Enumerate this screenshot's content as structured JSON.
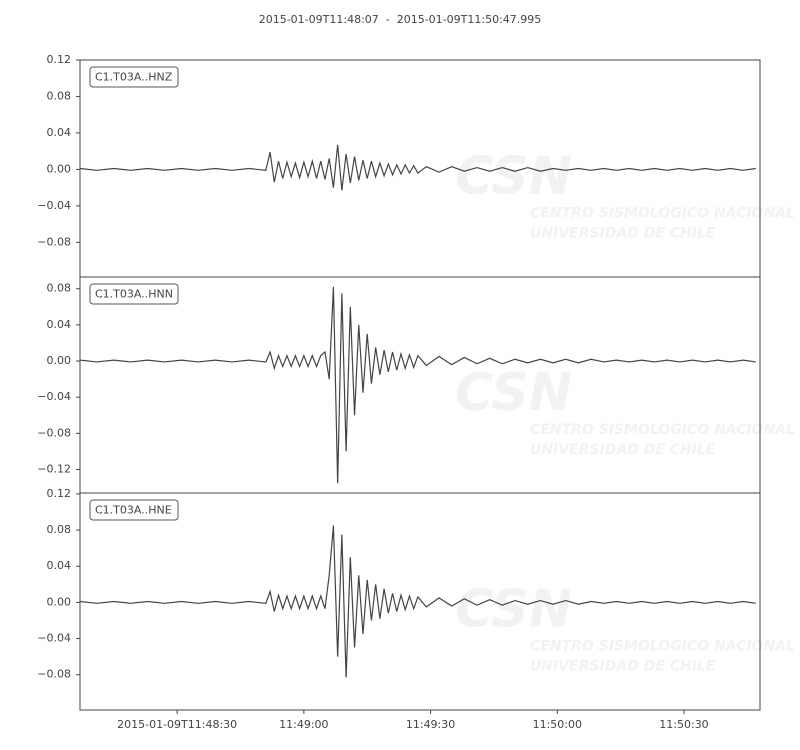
{
  "chart_data": [
    {
      "type": "line",
      "title": "2015-01-09T11:48:07  -  2015-01-09T11:50:47.995",
      "x": [
        0,
        4,
        8,
        12,
        16,
        20,
        24,
        28,
        32,
        36,
        40,
        44,
        45,
        46,
        47,
        48,
        49,
        50,
        51,
        52,
        53,
        54,
        55,
        56,
        57,
        58,
        59,
        60,
        61,
        62,
        63,
        64,
        65,
        66,
        67,
        68,
        69,
        70,
        71,
        72,
        73,
        74,
        75,
        76,
        77,
        78,
        79,
        80,
        82,
        85,
        88,
        91,
        94,
        97,
        100,
        103,
        106,
        109,
        112,
        115,
        118,
        121,
        124,
        127,
        130,
        133,
        136,
        139,
        142,
        145,
        148,
        151,
        154,
        157,
        160
      ],
      "series": [
        {
          "name": "C1.T03A..HNZ",
          "color": "#444444",
          "values": [
            0.001,
            -0.001,
            0.001,
            -0.001,
            0.001,
            -0.001,
            0.001,
            -0.001,
            0.001,
            -0.001,
            0.001,
            -0.001,
            0.019,
            -0.014,
            0.009,
            -0.01,
            0.008,
            -0.008,
            0.007,
            -0.009,
            0.008,
            -0.008,
            0.009,
            -0.01,
            0.009,
            -0.011,
            0.012,
            -0.02,
            0.027,
            -0.023,
            0.017,
            -0.015,
            0.014,
            -0.012,
            0.01,
            -0.01,
            0.009,
            -0.008,
            0.007,
            -0.007,
            0.006,
            -0.006,
            0.005,
            -0.005,
            0.005,
            -0.004,
            0.004,
            -0.004,
            0.003,
            -0.003,
            0.003,
            -0.002,
            0.002,
            -0.002,
            0.002,
            -0.002,
            0.002,
            -0.002,
            0.001,
            -0.001,
            0.001,
            -0.001,
            0.001,
            -0.001,
            0.001,
            -0.001,
            0.001,
            -0.001,
            0.001,
            -0.001,
            0.001,
            -0.001,
            0.001,
            -0.001,
            0.001
          ]
        }
      ],
      "xlim": [
        0,
        160.995
      ],
      "ylim": [
        -0.118,
        0.12
      ],
      "yticks": [
        0.12,
        0.08,
        0.04,
        {
          "value": 0,
          "label": "0.00"
        },
        {
          "value": -0.04,
          "label": "−0.04"
        },
        {
          "value": -0.08,
          "label": "−0.08"
        }
      ]
    },
    {
      "type": "line",
      "x": [
        0,
        4,
        8,
        12,
        16,
        20,
        24,
        28,
        32,
        36,
        40,
        44,
        45,
        46,
        47,
        48,
        49,
        50,
        51,
        52,
        53,
        54,
        55,
        56,
        57,
        58,
        59,
        60,
        61,
        62,
        63,
        64,
        65,
        66,
        67,
        68,
        69,
        70,
        71,
        72,
        73,
        74,
        75,
        76,
        77,
        78,
        79,
        80,
        82,
        85,
        88,
        91,
        94,
        97,
        100,
        103,
        106,
        109,
        112,
        115,
        118,
        121,
        124,
        127,
        130,
        133,
        136,
        139,
        142,
        145,
        148,
        151,
        154,
        157,
        160
      ],
      "series": [
        {
          "name": "C1.T03A..HNN",
          "color": "#444444",
          "values": [
            0.001,
            -0.001,
            0.001,
            -0.001,
            0.001,
            -0.001,
            0.001,
            -0.001,
            0.001,
            -0.001,
            0.001,
            -0.001,
            0.01,
            -0.008,
            0.006,
            -0.006,
            0.006,
            -0.006,
            0.006,
            -0.006,
            0.006,
            -0.006,
            0.006,
            -0.006,
            0.006,
            0.01,
            -0.02,
            0.082,
            -0.135,
            0.075,
            -0.1,
            0.06,
            -0.06,
            0.04,
            -0.035,
            0.03,
            -0.025,
            0.015,
            -0.015,
            0.012,
            -0.012,
            0.01,
            -0.01,
            0.008,
            -0.008,
            0.007,
            -0.007,
            0.006,
            -0.005,
            0.005,
            -0.004,
            0.004,
            -0.003,
            0.003,
            -0.003,
            0.002,
            -0.002,
            0.002,
            -0.002,
            0.002,
            -0.002,
            0.002,
            -0.001,
            0.001,
            -0.001,
            0.001,
            -0.001,
            0.001,
            -0.001,
            0.001,
            -0.001,
            0.001,
            -0.001,
            0.001,
            -0.001
          ]
        }
      ],
      "xlim": [
        0,
        160.995
      ],
      "ylim": [
        -0.146,
        0.093
      ],
      "yticks": [
        0.08,
        0.04,
        {
          "value": 0,
          "label": "0.00"
        },
        {
          "value": -0.04,
          "label": "−0.04"
        },
        {
          "value": -0.08,
          "label": "−0.08"
        },
        {
          "value": -0.12,
          "label": "−0.12"
        }
      ]
    },
    {
      "type": "line",
      "x": [
        0,
        4,
        8,
        12,
        16,
        20,
        24,
        28,
        32,
        36,
        40,
        44,
        45,
        46,
        47,
        48,
        49,
        50,
        51,
        52,
        53,
        54,
        55,
        56,
        57,
        58,
        59,
        60,
        61,
        62,
        63,
        64,
        65,
        66,
        67,
        68,
        69,
        70,
        71,
        72,
        73,
        74,
        75,
        76,
        77,
        78,
        79,
        80,
        82,
        85,
        88,
        91,
        94,
        97,
        100,
        103,
        106,
        109,
        112,
        115,
        118,
        121,
        124,
        127,
        130,
        133,
        136,
        139,
        142,
        145,
        148,
        151,
        154,
        157,
        160
      ],
      "series": [
        {
          "name": "C1.T03A..HNE",
          "color": "#444444",
          "values": [
            0.001,
            -0.001,
            0.001,
            -0.001,
            0.001,
            -0.001,
            0.001,
            -0.001,
            0.001,
            -0.001,
            0.001,
            -0.001,
            0.012,
            -0.01,
            0.008,
            -0.007,
            0.007,
            -0.007,
            0.007,
            -0.007,
            0.007,
            -0.007,
            0.007,
            -0.007,
            0.007,
            -0.007,
            0.03,
            0.085,
            -0.06,
            0.075,
            -0.083,
            0.05,
            -0.05,
            0.03,
            -0.035,
            0.025,
            -0.02,
            0.02,
            -0.018,
            0.015,
            -0.012,
            0.01,
            -0.01,
            0.008,
            -0.008,
            0.007,
            -0.007,
            0.006,
            -0.005,
            0.005,
            -0.004,
            0.004,
            -0.003,
            0.003,
            -0.003,
            0.002,
            -0.002,
            0.002,
            -0.002,
            0.002,
            -0.002,
            0.001,
            -0.001,
            0.001,
            -0.001,
            0.001,
            -0.001,
            0.001,
            -0.001,
            0.001,
            -0.001,
            0.001,
            -0.001,
            0.001,
            -0.001
          ]
        }
      ],
      "xlim": [
        0,
        160.995
      ],
      "ylim": [
        -0.119,
        0.121
      ],
      "yticks": [
        {
          "value": 0.12,
          "label": "0.12"
        },
        0.08,
        0.04,
        {
          "value": 0,
          "label": "0.00"
        },
        {
          "value": -0.04,
          "label": "−0.04"
        },
        {
          "value": -0.08,
          "label": "−0.08"
        }
      ],
      "xticks": [
        {
          "value": 23,
          "label": "2015-01-09T11:48:30"
        },
        {
          "value": 53,
          "label": "11:49:00"
        },
        {
          "value": 83,
          "label": "11:49:30"
        },
        {
          "value": 113,
          "label": "11:50:00"
        },
        {
          "value": 143,
          "label": "11:50:30"
        }
      ]
    }
  ],
  "watermark": {
    "logo": "CSN",
    "line1": "CENTRO SISMOLOGICO NACIONAL",
    "line2": "UNIVERSIDAD DE CHILE"
  }
}
